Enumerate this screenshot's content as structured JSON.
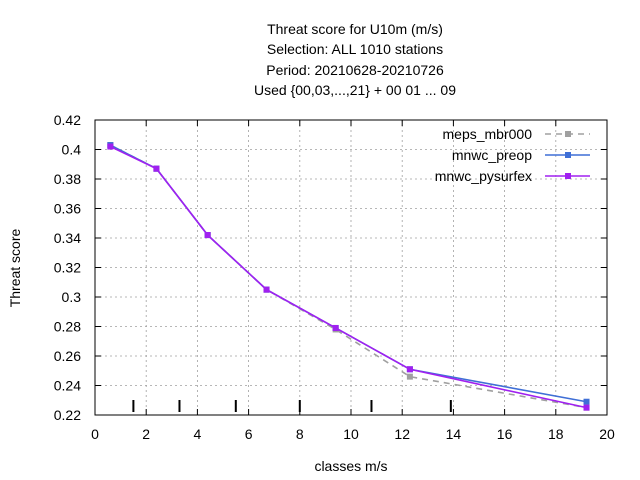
{
  "chart_data": {
    "type": "line",
    "title_lines": [
      "Threat score  for U10m (m/s)",
      "Selection: ALL    1010 stations",
      "Period: 20210628-20210726",
      "Used {00,03,...,21} + 00 01 ... 09"
    ],
    "xlabel": "classes m/s",
    "ylabel": "Threat score",
    "xlim": [
      0,
      20
    ],
    "ylim": [
      0.22,
      0.42
    ],
    "x_ticks": [
      0,
      2,
      4,
      6,
      8,
      10,
      12,
      14,
      16,
      18,
      20
    ],
    "x_tick_labels": [
      "0",
      "2",
      "4",
      "6",
      "8",
      "10",
      "12",
      "14",
      "16",
      "18",
      "20"
    ],
    "y_ticks": [
      0.22,
      0.24,
      0.26,
      0.28,
      0.3,
      0.32,
      0.34,
      0.36,
      0.38,
      0.4,
      0.42
    ],
    "y_tick_labels": [
      "0.22",
      "0.24",
      "0.26",
      "0.28",
      "0.3",
      "0.32",
      "0.34",
      "0.36",
      "0.38",
      "0.4",
      "0.42"
    ],
    "grid": true,
    "legend_position": "top-right",
    "class_limit_marks": [
      1.5,
      3.3,
      5.5,
      8.0,
      10.8,
      13.9
    ],
    "series": [
      {
        "name": "meps_mbr000",
        "color": "#a0a0a0",
        "style": "dashed",
        "x": [
          0.6,
          2.4,
          4.4,
          6.7,
          9.4,
          12.3,
          19.2
        ],
        "y": [
          0.403,
          0.387,
          0.342,
          0.305,
          0.278,
          0.246,
          0.225
        ]
      },
      {
        "name": "mnwc_preop",
        "color": "#3f6fd6",
        "style": "solid",
        "x": [
          0.6,
          2.4,
          4.4,
          6.7,
          9.4,
          12.3,
          19.2
        ],
        "y": [
          0.403,
          0.387,
          0.342,
          0.305,
          0.279,
          0.251,
          0.229
        ]
      },
      {
        "name": "mnwc_pysurfex",
        "color": "#a020f0",
        "style": "solid",
        "x": [
          0.6,
          2.4,
          4.4,
          6.7,
          9.4,
          12.3,
          19.2
        ],
        "y": [
          0.402,
          0.387,
          0.342,
          0.305,
          0.279,
          0.251,
          0.225
        ]
      }
    ]
  }
}
